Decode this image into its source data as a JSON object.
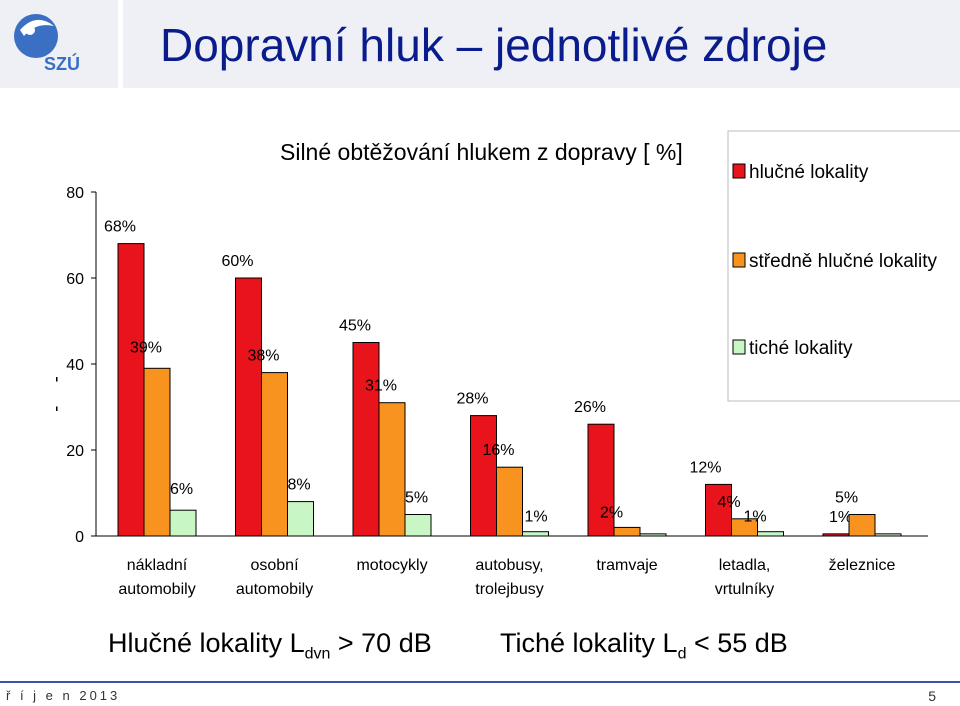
{
  "header": {
    "title": "Dopravní hluk – jednotlivé zdroje",
    "logo_text": "SZÚ"
  },
  "notes": {
    "noisy": {
      "prefix": "Hlučné lokality L",
      "sub": "dvn",
      "suffix": " > 70 dB"
    },
    "quiet": {
      "prefix": "Tiché lokality L",
      "sub": "d",
      "suffix": " < 55 dB"
    }
  },
  "footer": {
    "date": "ř í j e n  2013",
    "page": "5"
  },
  "colors": {
    "noisy": "#e8131b",
    "medium": "#f7931e",
    "quiet": "#c8f7c5",
    "title": "#0a1c8c",
    "band": "#eef0f6"
  },
  "chart_data": {
    "type": "bar",
    "title": "Silné obtěžování hlukem z dopravy [ %]",
    "ylabel": "[ % ]",
    "xlabel": "",
    "ylim": [
      0,
      80
    ],
    "yticks": [
      0,
      20,
      40,
      60,
      80
    ],
    "grid": false,
    "legend_position": "top-right",
    "categories": [
      [
        "nákladní",
        "automobily"
      ],
      [
        "osobní",
        "automobily"
      ],
      [
        "motocykly"
      ],
      [
        "autobusy,",
        "trolejbusy"
      ],
      [
        "tramvaje"
      ],
      [
        "letadla,",
        "vrtulníky"
      ],
      [
        "železnice"
      ]
    ],
    "series": [
      {
        "name": "hlučné lokality",
        "values": [
          68,
          60,
          45,
          28,
          26,
          12,
          0.5
        ],
        "labels": [
          "68%",
          "60%",
          "45%",
          "28%",
          "26%",
          "12%",
          "1%"
        ]
      },
      {
        "name": "středně hlučné lokality",
        "values": [
          39,
          38,
          31,
          16,
          2,
          4,
          5
        ],
        "labels": [
          "39%",
          "38%",
          "31%",
          "16%",
          "2%",
          "4%",
          "5%"
        ]
      },
      {
        "name": "tiché lokality",
        "values": [
          6,
          8,
          5,
          1,
          0.5,
          1,
          0.5
        ],
        "labels": [
          "6%",
          "8%",
          "5%",
          "1%",
          "",
          "1%",
          ""
        ]
      }
    ]
  }
}
